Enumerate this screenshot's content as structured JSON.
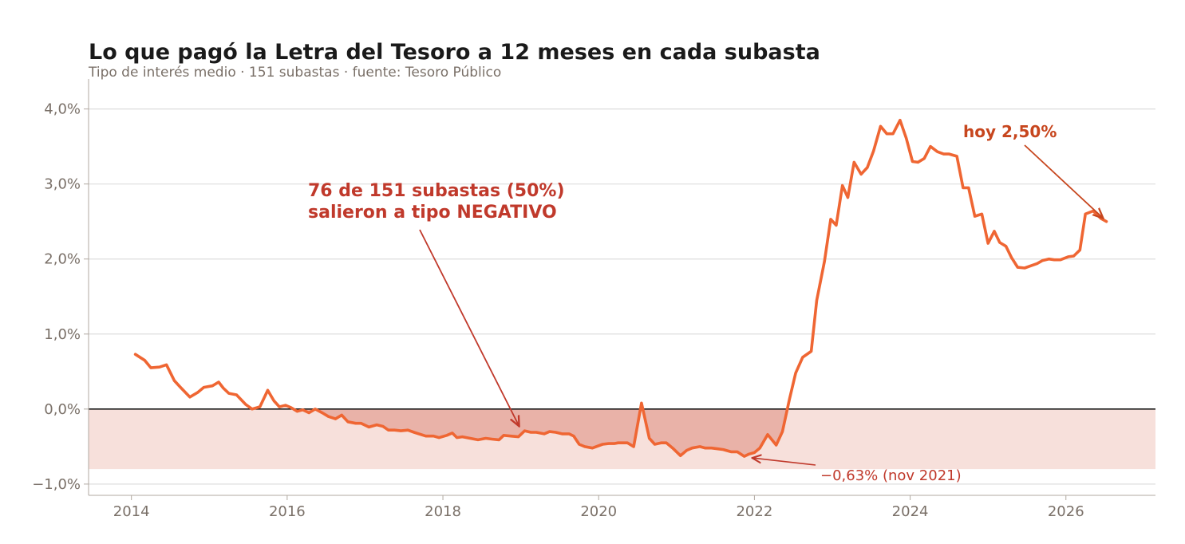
{
  "colors": {
    "line": "#ef6633",
    "negative_band": "#f7e0db",
    "negative_fill": "#e9b2a8",
    "zero_line": "#1a1a1a",
    "grid": "#dddddd",
    "axis": "#b0a8a0",
    "annotation": "#c0392b",
    "annotation_today": "#c7461e"
  },
  "chart_data": {
    "type": "line",
    "title": "Lo que pagó la Letra del Tesoro a 12 meses en cada subasta",
    "subtitle": "Tipo de interés medio · 151 subastas · fuente: Tesoro Público",
    "xlabel": "",
    "ylabel": "",
    "xlim": [
      2013.45,
      2027.15
    ],
    "ylim": [
      -1.15,
      4.4
    ],
    "x_ticks": [
      2014,
      2016,
      2018,
      2020,
      2022,
      2024,
      2026
    ],
    "x_tick_labels": [
      "2014",
      "2016",
      "2018",
      "2020",
      "2022",
      "2024",
      "2026"
    ],
    "y_ticks": [
      -1,
      0,
      1,
      2,
      3,
      4
    ],
    "y_tick_labels": [
      "−1,0%",
      "0,0%",
      "1,0%",
      "2,0%",
      "3,0%",
      "4,0%"
    ],
    "grid": "horizontal",
    "legend": "none",
    "negative_band_range": [
      -0.8,
      0
    ],
    "series": [
      {
        "x": [
          2014.05,
          2014.17,
          2014.25,
          2014.36,
          2014.45,
          2014.55,
          2014.63,
          2014.75,
          2014.85,
          2014.93,
          2015.04,
          2015.12,
          2015.18,
          2015.25,
          2015.35,
          2015.47,
          2015.55,
          2015.65,
          2015.75,
          2015.83,
          2015.9,
          2015.98,
          2016.05,
          2016.13,
          2016.2,
          2016.28,
          2016.36,
          2016.45,
          2016.53,
          2016.62,
          2016.7,
          2016.78,
          2016.88,
          2016.95,
          2017.05,
          2017.15,
          2017.23,
          2017.3,
          2017.38,
          2017.46,
          2017.55,
          2017.63,
          2017.78,
          2017.88,
          2017.95,
          2018.05,
          2018.12,
          2018.18,
          2018.25,
          2018.35,
          2018.45,
          2018.55,
          2018.63,
          2018.72,
          2018.78,
          2018.87,
          2018.97,
          2019.05,
          2019.13,
          2019.2,
          2019.3,
          2019.37,
          2019.45,
          2019.53,
          2019.62,
          2019.68,
          2019.75,
          2019.82,
          2019.92,
          2020.05,
          2020.13,
          2020.2,
          2020.25,
          2020.37,
          2020.45,
          2020.55,
          2020.65,
          2020.72,
          2020.8,
          2020.87,
          2020.95,
          2021.05,
          2021.13,
          2021.2,
          2021.3,
          2021.37,
          2021.45,
          2021.53,
          2021.6,
          2021.7,
          2021.78,
          2021.87,
          2021.93,
          2022.0,
          2022.07,
          2022.17,
          2022.28,
          2022.36,
          2022.45,
          2022.53,
          2022.62,
          2022.73,
          2022.8,
          2022.9,
          2022.98,
          2023.05,
          2023.13,
          2023.2,
          2023.28,
          2023.37,
          2023.45,
          2023.53,
          2023.62,
          2023.7,
          2023.78,
          2023.87,
          2023.95,
          2024.03,
          2024.1,
          2024.18,
          2024.26,
          2024.35,
          2024.43,
          2024.5,
          2024.6,
          2024.68,
          2024.75,
          2024.83,
          2024.92,
          2025.0,
          2025.08,
          2025.15,
          2025.23,
          2025.3,
          2025.38,
          2025.47,
          2025.55,
          2025.63,
          2025.7,
          2025.78,
          2025.85,
          2025.93,
          2026.03,
          2026.1,
          2026.18,
          2026.25,
          2026.35,
          2026.45,
          2026.52
        ],
        "values": [
          0.73,
          0.65,
          0.55,
          0.56,
          0.59,
          0.38,
          0.29,
          0.16,
          0.22,
          0.29,
          0.31,
          0.36,
          0.28,
          0.21,
          0.19,
          0.06,
          0.0,
          0.03,
          0.25,
          0.11,
          0.03,
          0.05,
          0.02,
          -0.03,
          -0.01,
          -0.05,
          0.0,
          -0.05,
          -0.1,
          -0.13,
          -0.08,
          -0.17,
          -0.19,
          -0.19,
          -0.24,
          -0.21,
          -0.23,
          -0.28,
          -0.28,
          -0.29,
          -0.28,
          -0.31,
          -0.36,
          -0.36,
          -0.38,
          -0.35,
          -0.32,
          -0.38,
          -0.37,
          -0.39,
          -0.41,
          -0.39,
          -0.4,
          -0.41,
          -0.35,
          -0.36,
          -0.37,
          -0.29,
          -0.31,
          -0.31,
          -0.33,
          -0.3,
          -0.31,
          -0.33,
          -0.33,
          -0.36,
          -0.47,
          -0.5,
          -0.52,
          -0.47,
          -0.46,
          -0.46,
          -0.45,
          -0.45,
          -0.5,
          0.08,
          -0.39,
          -0.47,
          -0.45,
          -0.45,
          -0.52,
          -0.62,
          -0.55,
          -0.52,
          -0.5,
          -0.52,
          -0.52,
          -0.53,
          -0.54,
          -0.57,
          -0.57,
          -0.63,
          -0.6,
          -0.58,
          -0.52,
          -0.34,
          -0.48,
          -0.3,
          0.13,
          0.48,
          0.69,
          0.77,
          1.45,
          1.97,
          2.53,
          2.45,
          2.98,
          2.82,
          3.29,
          3.13,
          3.22,
          3.44,
          3.77,
          3.67,
          3.67,
          3.85,
          3.61,
          3.3,
          3.29,
          3.34,
          3.5,
          3.43,
          3.4,
          3.4,
          3.37,
          2.95,
          2.95,
          2.57,
          2.6,
          2.21,
          2.37,
          2.22,
          2.17,
          2.02,
          1.89,
          1.88,
          1.91,
          1.94,
          1.98,
          2.0,
          1.99,
          1.99,
          2.03,
          2.04,
          2.12,
          2.6,
          2.64,
          2.54,
          2.5
        ]
      }
    ],
    "annotations": {
      "negative_line1": "76 de 151 subastas (50%)",
      "negative_line2": "salieron a tipo NEGATIVO",
      "negative_target": [
        2019.0,
        -0.24
      ],
      "minimum_label": "−0,63% (nov 2021)",
      "minimum_point": [
        2021.93,
        -0.63
      ],
      "today_label": "hoy 2,50%",
      "today_point": [
        2026.52,
        2.5
      ]
    }
  }
}
